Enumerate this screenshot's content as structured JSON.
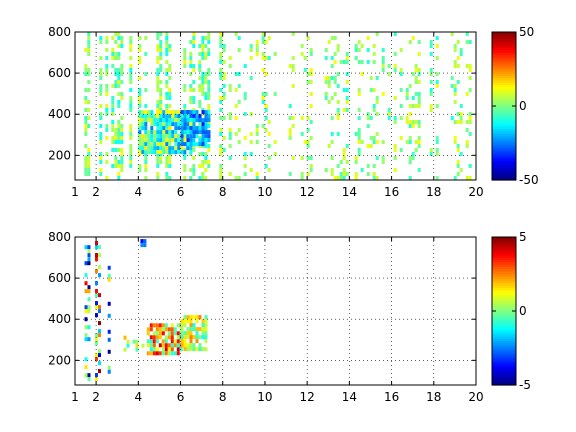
{
  "chart_data": [
    {
      "type": "heatmap",
      "xlim": [
        1,
        20
      ],
      "ylim": [
        80,
        800
      ],
      "x_ticks": [
        1,
        2,
        4,
        6,
        8,
        10,
        12,
        14,
        16,
        18,
        20
      ],
      "y_ticks": [
        200,
        400,
        600,
        800
      ],
      "grid": "dotted",
      "colorbar": {
        "clim": [
          -50,
          50
        ],
        "ticks": [
          50,
          0,
          -50
        ],
        "colormap": "jet"
      },
      "features": [
        {
          "x": [
            1.3,
            8.0
          ],
          "y": [
            80,
            800
          ],
          "value_range": [
            -12,
            12
          ],
          "density": 0.55,
          "stripe": true
        },
        {
          "x": [
            4.0,
            6.5
          ],
          "y": [
            220,
            420
          ],
          "value_range": [
            -25,
            15
          ],
          "density": 0.9
        },
        {
          "x": [
            6.0,
            7.3
          ],
          "y": [
            260,
            420
          ],
          "value_range": [
            -35,
            -8
          ],
          "density": 0.85
        },
        {
          "x": [
            8.0,
            20.0
          ],
          "y": [
            80,
            800
          ],
          "value_range": [
            -10,
            12
          ],
          "density": 0.22,
          "stripe": true
        }
      ]
    },
    {
      "type": "heatmap",
      "xlim": [
        1,
        20
      ],
      "ylim": [
        80,
        800
      ],
      "x_ticks": [
        1,
        2,
        4,
        6,
        8,
        10,
        12,
        14,
        16,
        18,
        20
      ],
      "y_ticks": [
        200,
        400,
        600,
        800
      ],
      "grid": "dotted",
      "colorbar": {
        "clim": [
          -5,
          5
        ],
        "ticks": [
          5,
          0,
          -5
        ],
        "colormap": "jet"
      },
      "features": [
        {
          "x": [
            1.45,
            1.6
          ],
          "y": [
            80,
            760
          ],
          "value_range": [
            -5,
            5
          ],
          "density": 0.35
        },
        {
          "x": [
            1.95,
            2.1
          ],
          "y": [
            100,
            780
          ],
          "value_range": [
            -5,
            5
          ],
          "density": 0.35
        },
        {
          "x": [
            2.55,
            2.65
          ],
          "y": [
            150,
            660
          ],
          "value_range": [
            -5,
            2
          ],
          "density": 0.3
        },
        {
          "x": [
            4.1,
            4.25
          ],
          "y": [
            740,
            790
          ],
          "value_range": [
            -5,
            -2
          ],
          "density": 0.6
        },
        {
          "x": [
            4.4,
            6.0
          ],
          "y": [
            230,
            380
          ],
          "value_range": [
            -1,
            4.5
          ],
          "density": 0.85
        },
        {
          "x": [
            6.0,
            7.2
          ],
          "y": [
            260,
            420
          ],
          "value_range": [
            -1,
            2.5
          ],
          "density": 0.8
        },
        {
          "x": [
            3.3,
            4.4
          ],
          "y": [
            260,
            320
          ],
          "value_range": [
            -1,
            2
          ],
          "density": 0.3
        }
      ]
    }
  ]
}
